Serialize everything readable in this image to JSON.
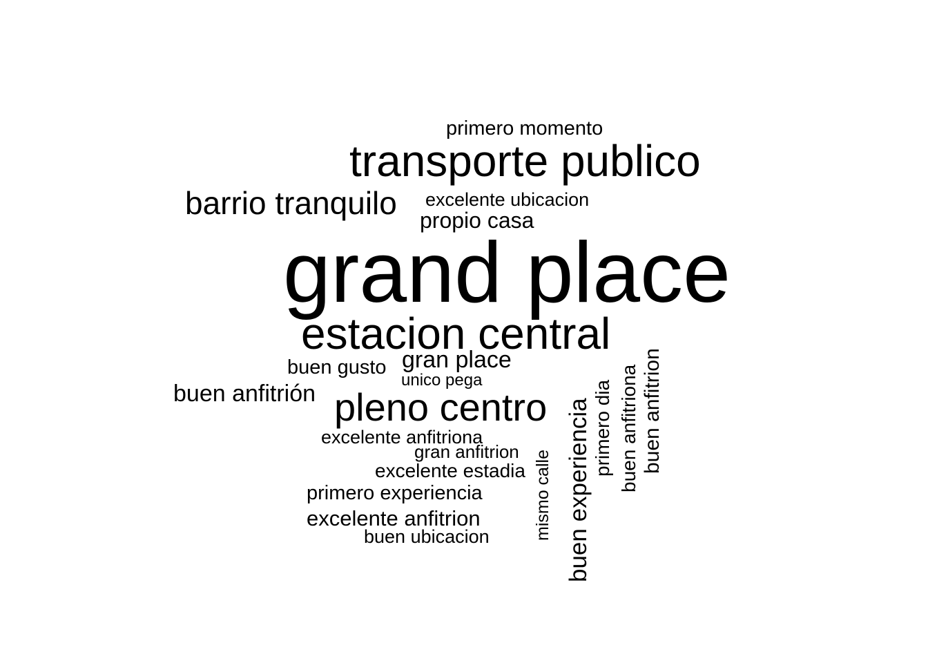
{
  "wordcloud": {
    "words": [
      "primero momento",
      "transporte publico",
      "barrio tranquilo",
      "excelente ubicacion",
      "propio casa",
      "grand place",
      "estacion central",
      "gran place",
      "buen gusto",
      "unico pega",
      "buen anfitrión",
      "pleno centro",
      "excelente anfitriona",
      "gran anfitrion",
      "excelente estadia",
      "primero experiencia",
      "excelente anfitrion",
      "buen ubicacion",
      "mismo calle",
      "buen experiencia",
      "primero dia",
      "buen anfitriona",
      "buen anfitrion"
    ],
    "text_color": "#000000",
    "background_color": "#ffffff"
  }
}
